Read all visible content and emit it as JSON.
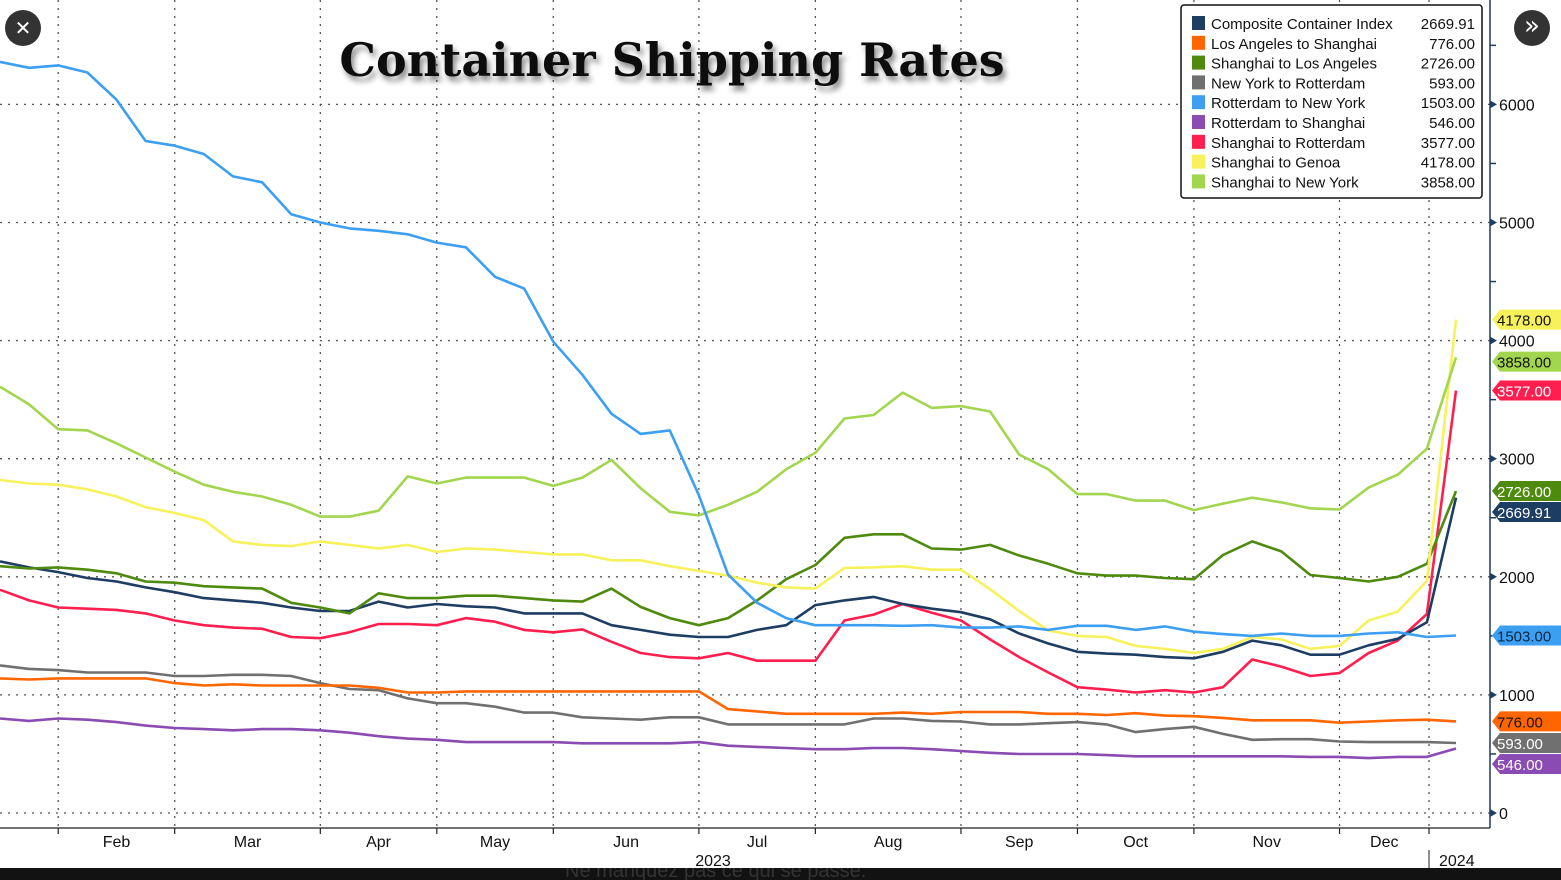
{
  "viewer": {
    "close_icon": "close-icon",
    "next_icon": "double-chevron-right-icon",
    "close_glyph": "✕",
    "next_glyph": "»",
    "footer_text": "Ne manquez pas ce qui se passe."
  },
  "chart_data": {
    "type": "line",
    "title": "Container Shipping Rates",
    "x": [
      "2023-01-19",
      "2023-01-26",
      "2023-02-02",
      "2023-02-09",
      "2023-02-16",
      "2023-02-23",
      "2023-03-02",
      "2023-03-09",
      "2023-03-16",
      "2023-03-23",
      "2023-03-30",
      "2023-04-06",
      "2023-04-13",
      "2023-04-20",
      "2023-04-27",
      "2023-05-04",
      "2023-05-11",
      "2023-05-18",
      "2023-05-25",
      "2023-06-01",
      "2023-06-08",
      "2023-06-15",
      "2023-06-22",
      "2023-06-29",
      "2023-07-06",
      "2023-07-13",
      "2023-07-20",
      "2023-07-27",
      "2023-08-03",
      "2023-08-10",
      "2023-08-17",
      "2023-08-24",
      "2023-08-31",
      "2023-09-07",
      "2023-09-14",
      "2023-09-21",
      "2023-09-28",
      "2023-10-05",
      "2023-10-12",
      "2023-10-19",
      "2023-10-26",
      "2023-11-02",
      "2023-11-09",
      "2023-11-16",
      "2023-11-23",
      "2023-11-30",
      "2023-12-07",
      "2023-12-14",
      "2023-12-21",
      "2023-12-28",
      "2024-01-04"
    ],
    "month_labels": [
      "Feb",
      "Mar",
      "Apr",
      "May",
      "Jun",
      "Jul",
      "Aug",
      "Sep",
      "Oct",
      "Nov",
      "Dec"
    ],
    "year_labels": [
      "2023",
      "2024"
    ],
    "y_ticks": [
      "0",
      "1000",
      "2000",
      "3000",
      "4000",
      "5000",
      "6000"
    ],
    "ylim": [
      0,
      6900
    ],
    "y_axis_side": "right",
    "grid": true,
    "legend_placement": "top-right",
    "series": [
      {
        "name": "Composite Container Index",
        "last": "2669.91",
        "color": "#1e3d63",
        "tag_text": "#ffffff",
        "values": [
          2130,
          2080,
          2040,
          1990,
          1960,
          1910,
          1870,
          1820,
          1800,
          1780,
          1740,
          1710,
          1710,
          1790,
          1740,
          1770,
          1750,
          1740,
          1690,
          1690,
          1690,
          1590,
          1550,
          1510,
          1490,
          1490,
          1550,
          1590,
          1760,
          1800,
          1830,
          1770,
          1730,
          1700,
          1640,
          1520,
          1435,
          1365,
          1350,
          1340,
          1320,
          1310,
          1365,
          1460,
          1420,
          1340,
          1340,
          1420,
          1475,
          1615,
          2669.91
        ]
      },
      {
        "name": "Los Angeles to Shanghai",
        "last": "776.00",
        "color": "#ff6600",
        "tag_text": "#111111",
        "values": [
          1140,
          1130,
          1140,
          1140,
          1140,
          1140,
          1100,
          1080,
          1090,
          1080,
          1080,
          1080,
          1080,
          1060,
          1020,
          1020,
          1030,
          1030,
          1030,
          1030,
          1030,
          1030,
          1030,
          1030,
          1030,
          880,
          860,
          840,
          840,
          840,
          840,
          850,
          840,
          855,
          855,
          855,
          840,
          840,
          830,
          845,
          825,
          820,
          805,
          785,
          785,
          785,
          765,
          775,
          785,
          790,
          776
        ]
      },
      {
        "name": "Shanghai to Los Angeles",
        "last": "2726.00",
        "color": "#4e8a0e",
        "tag_text": "#ffffff",
        "values": [
          2090,
          2070,
          2080,
          2060,
          2030,
          1960,
          1950,
          1920,
          1910,
          1900,
          1780,
          1740,
          1690,
          1860,
          1820,
          1820,
          1840,
          1840,
          1820,
          1800,
          1790,
          1900,
          1745,
          1650,
          1590,
          1650,
          1800,
          1980,
          2100,
          2330,
          2360,
          2360,
          2240,
          2230,
          2270,
          2180,
          2110,
          2030,
          2010,
          2010,
          1990,
          1980,
          2185,
          2300,
          2215,
          2015,
          1990,
          1960,
          2000,
          2110,
          2726
        ]
      },
      {
        "name": "New York to Rotterdam",
        "last": "593.00",
        "color": "#707070",
        "tag_text": "#ffffff",
        "values": [
          1250,
          1220,
          1210,
          1190,
          1190,
          1190,
          1160,
          1160,
          1170,
          1170,
          1160,
          1100,
          1050,
          1040,
          970,
          930,
          930,
          900,
          850,
          850,
          810,
          800,
          790,
          810,
          810,
          750,
          750,
          750,
          750,
          750,
          800,
          800,
          780,
          775,
          750,
          750,
          760,
          770,
          750,
          685,
          710,
          730,
          670,
          620,
          625,
          625,
          605,
          600,
          600,
          600,
          593
        ]
      },
      {
        "name": "Rotterdam to New York",
        "last": "1503.00",
        "color": "#3d9ff2",
        "tag_text": "#0d2540",
        "values": [
          6360,
          6310,
          6330,
          6270,
          6040,
          5690,
          5650,
          5580,
          5390,
          5340,
          5070,
          5000,
          4950,
          4930,
          4900,
          4830,
          4790,
          4540,
          4440,
          3990,
          3710,
          3380,
          3210,
          3240,
          2690,
          2020,
          1780,
          1650,
          1590,
          1590,
          1590,
          1585,
          1590,
          1570,
          1570,
          1580,
          1550,
          1585,
          1585,
          1550,
          1580,
          1535,
          1515,
          1500,
          1520,
          1500,
          1500,
          1520,
          1530,
          1490,
          1503
        ]
      },
      {
        "name": "Rotterdam to Shanghai",
        "last": "546.00",
        "color": "#8a4bb2",
        "tag_text": "#ffffff",
        "values": [
          800,
          780,
          800,
          790,
          770,
          740,
          720,
          710,
          700,
          710,
          710,
          700,
          680,
          650,
          630,
          620,
          600,
          600,
          600,
          600,
          590,
          590,
          590,
          590,
          600,
          570,
          560,
          550,
          540,
          540,
          550,
          550,
          540,
          525,
          510,
          500,
          500,
          500,
          490,
          480,
          480,
          480,
          480,
          480,
          480,
          475,
          475,
          465,
          475,
          475,
          546
        ]
      },
      {
        "name": "Shanghai to Rotterdam",
        "last": "3577.00",
        "color": "#ff1f4f",
        "tag_text": "#ffffff",
        "values": [
          1890,
          1800,
          1740,
          1730,
          1720,
          1690,
          1630,
          1590,
          1570,
          1560,
          1490,
          1480,
          1530,
          1600,
          1600,
          1590,
          1650,
          1620,
          1550,
          1530,
          1555,
          1450,
          1355,
          1320,
          1310,
          1355,
          1290,
          1290,
          1290,
          1630,
          1680,
          1770,
          1695,
          1630,
          1470,
          1320,
          1190,
          1065,
          1045,
          1020,
          1040,
          1020,
          1065,
          1300,
          1240,
          1160,
          1185,
          1355,
          1460,
          1685,
          3577
        ]
      },
      {
        "name": "Shanghai to Genoa",
        "last": "4178.00",
        "color": "#f7f25c",
        "tag_text": "#111111",
        "values": [
          2820,
          2790,
          2780,
          2740,
          2680,
          2590,
          2540,
          2480,
          2300,
          2270,
          2260,
          2300,
          2270,
          2240,
          2270,
          2210,
          2240,
          2230,
          2210,
          2190,
          2190,
          2140,
          2140,
          2090,
          2050,
          2010,
          1950,
          1910,
          1900,
          2075,
          2080,
          2090,
          2060,
          2060,
          1895,
          1710,
          1545,
          1500,
          1490,
          1415,
          1390,
          1355,
          1390,
          1490,
          1470,
          1390,
          1415,
          1630,
          1705,
          1965,
          4178
        ]
      },
      {
        "name": "Shanghai to New York",
        "last": "3858.00",
        "color": "#a2d64e",
        "tag_text": "#111111",
        "values": [
          3610,
          3460,
          3250,
          3240,
          3130,
          3010,
          2890,
          2780,
          2720,
          2680,
          2610,
          2510,
          2510,
          2560,
          2850,
          2790,
          2840,
          2840,
          2840,
          2770,
          2840,
          2990,
          2750,
          2550,
          2520,
          2610,
          2720,
          2910,
          3050,
          3340,
          3370,
          3560,
          3430,
          3445,
          3400,
          3035,
          2910,
          2700,
          2700,
          2645,
          2645,
          2565,
          2620,
          2670,
          2630,
          2580,
          2570,
          2755,
          2865,
          3085,
          3858
        ]
      }
    ]
  }
}
